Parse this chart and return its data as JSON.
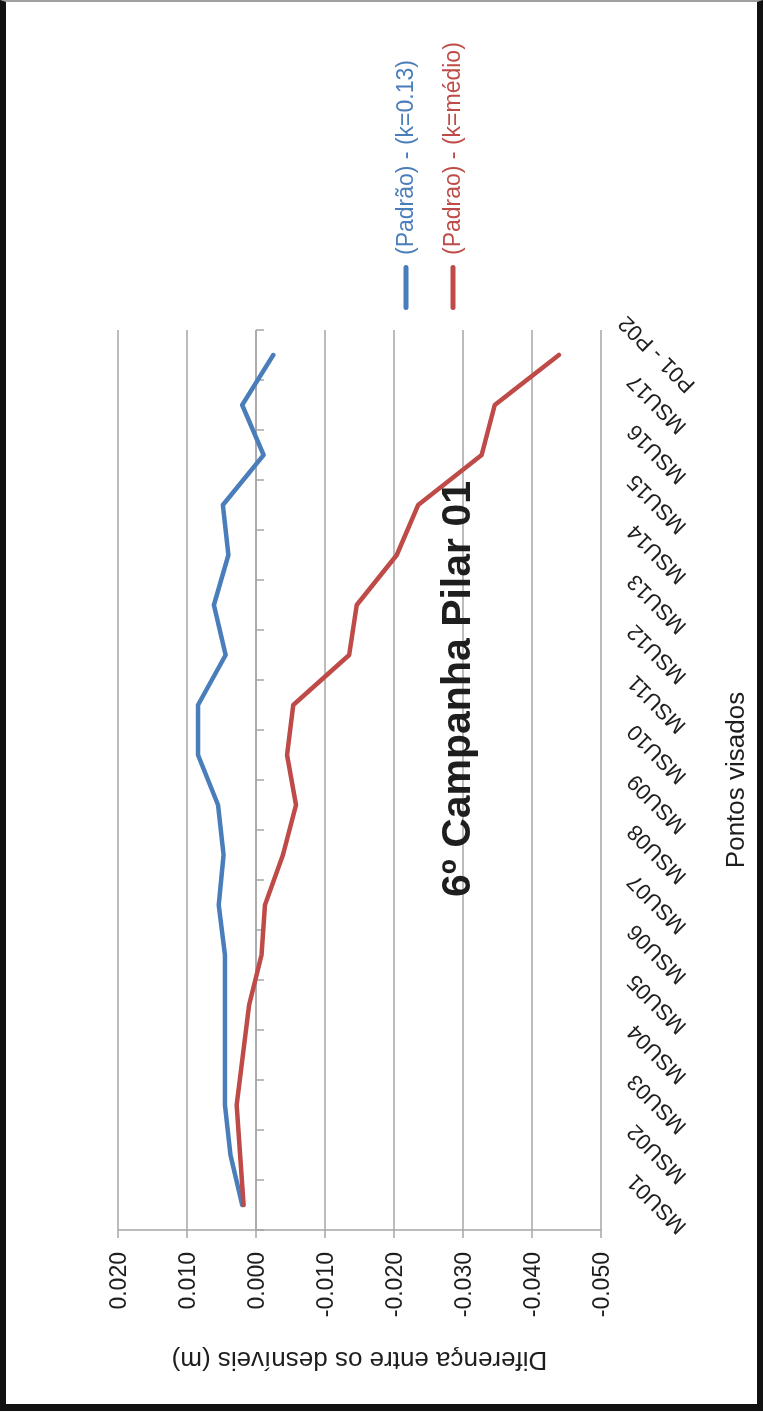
{
  "chart_data": {
    "type": "line",
    "orientation": "horizontal",
    "title": "6º Campanha Pilar 01",
    "xlabel": "Diferença entre os desníveis (m)",
    "ylabel": "Pontos visados",
    "categories": [
      "P01 - P02",
      "MSU17",
      "MSU16",
      "MSU15",
      "MSU14",
      "MSU13",
      "MSU12",
      "MSU11",
      "MSU10",
      "MSU09",
      "MSU08",
      "MSU07",
      "MSU06",
      "MSU05",
      "MSU04",
      "MSU03",
      "MSU02",
      "MSU01"
    ],
    "series": [
      {
        "name": "(Padrão) - (k=0.13)",
        "color": "#4a7ebb",
        "values": [
          -0.0025,
          0.002,
          -0.0011,
          0.0048,
          0.004,
          0.0061,
          0.0044,
          0.0084,
          0.0084,
          0.0055,
          0.0047,
          0.0054,
          0.0045,
          0.0045,
          0.0045,
          0.0045,
          0.0037,
          0.002
        ]
      },
      {
        "name": "(Padrao) - (k=médio)",
        "color": "#be4b48",
        "values": [
          -0.0439,
          -0.0346,
          -0.0327,
          -0.0235,
          -0.0204,
          -0.0146,
          -0.0135,
          -0.0054,
          -0.0045,
          -0.0058,
          -0.0039,
          -0.0013,
          -0.0008,
          0.001,
          0.0019,
          0.0028,
          0.0023,
          0.0018
        ]
      }
    ],
    "xlim": [
      0.02,
      -0.05
    ],
    "xticks": [
      {
        "value": 0.02,
        "label": "0.020"
      },
      {
        "value": 0.01,
        "label": "0.010"
      },
      {
        "value": 0,
        "label": "0.000"
      },
      {
        "value": -0.01,
        "label": "-0.010"
      },
      {
        "value": -0.02,
        "label": "-0.020"
      },
      {
        "value": -0.03,
        "label": "-0.030"
      },
      {
        "value": -0.04,
        "label": "-0.040"
      },
      {
        "value": -0.05,
        "label": "-0.050"
      }
    ],
    "grid": "x",
    "legend": "top",
    "marker": "none",
    "line_style": "solid"
  }
}
